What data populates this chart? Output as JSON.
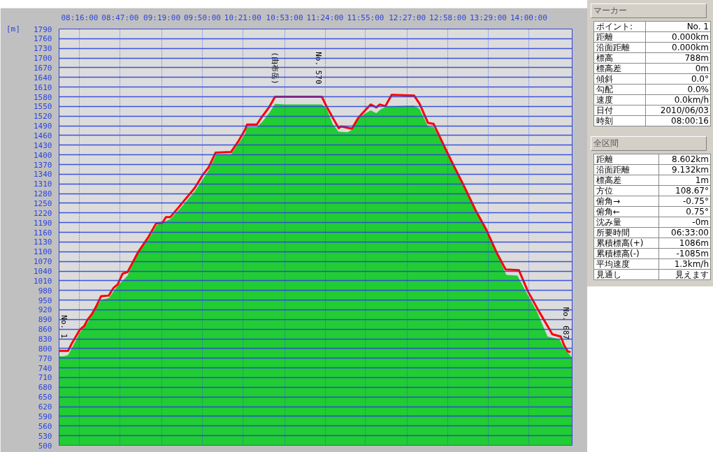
{
  "chart_data": [
    {
      "type": "area",
      "ylabel": "[m]",
      "grid": true,
      "xlim": [
        8.0044,
        14.5544
      ],
      "ylim": [
        500,
        1790
      ],
      "xticks": [
        {
          "value": 8.2667,
          "label": "08:16:00"
        },
        {
          "value": 8.7833,
          "label": "08:47:00"
        },
        {
          "value": 9.3167,
          "label": "09:19:00"
        },
        {
          "value": 9.8333,
          "label": "09:50:00"
        },
        {
          "value": 10.35,
          "label": "10:21:00"
        },
        {
          "value": 10.8833,
          "label": "10:53:00"
        },
        {
          "value": 11.4,
          "label": "11:24:00"
        },
        {
          "value": 11.9167,
          "label": "11:55:00"
        },
        {
          "value": 12.45,
          "label": "12:27:00"
        },
        {
          "value": 12.9667,
          "label": "12:58:00"
        },
        {
          "value": 13.4833,
          "label": "13:29:00"
        },
        {
          "value": 14.0,
          "label": "14:00:00"
        }
      ],
      "yticks": [
        500,
        530,
        560,
        590,
        620,
        650,
        680,
        710,
        740,
        770,
        800,
        830,
        860,
        890,
        920,
        950,
        980,
        1010,
        1040,
        1070,
        1100,
        1130,
        1160,
        1190,
        1220,
        1250,
        1280,
        1310,
        1340,
        1370,
        1400,
        1430,
        1460,
        1490,
        1520,
        1550,
        1580,
        1610,
        1640,
        1670,
        1700,
        1730,
        1760,
        1790
      ],
      "series": [
        {
          "type": "area",
          "color": "#22cc33",
          "x": [
            8.005,
            8.067,
            8.12,
            8.272,
            8.37,
            8.54,
            8.638,
            8.754,
            8.816,
            8.879,
            9.003,
            9.146,
            9.253,
            9.423,
            9.557,
            9.735,
            9.913,
            10.012,
            10.199,
            10.288,
            10.377,
            10.404,
            10.529,
            10.601,
            10.69,
            10.761,
            10.886,
            11.359,
            11.421,
            11.501,
            11.573,
            11.689,
            11.742,
            11.822,
            11.903,
            11.983,
            12.054,
            12.117,
            12.188,
            12.25,
            12.536,
            12.607,
            12.714,
            12.786,
            12.902,
            13.027,
            13.178,
            13.321,
            13.473,
            13.589,
            13.714,
            13.856,
            13.972,
            14.106,
            14.24,
            14.391,
            14.445,
            14.552
          ],
          "values": [
            776,
            776,
            780,
            850,
            881,
            951,
            956,
            995,
            1010,
            1026,
            1093,
            1139,
            1183,
            1201,
            1236,
            1286,
            1352,
            1402,
            1402,
            1433,
            1464,
            1486,
            1486,
            1503,
            1531,
            1558,
            1556,
            1556,
            1542,
            1494,
            1472,
            1470,
            1477,
            1512,
            1527,
            1538,
            1529,
            1542,
            1549,
            1551,
            1553,
            1542,
            1488,
            1486,
            1433,
            1372,
            1297,
            1229,
            1161,
            1096,
            1028,
            1026,
            973,
            914,
            837,
            829,
            804,
            772
          ]
        },
        {
          "type": "line",
          "color": "#ff0000",
          "x": [
            8.005,
            8.12,
            8.165,
            8.272,
            8.326,
            8.37,
            8.424,
            8.486,
            8.54,
            8.638,
            8.7,
            8.754,
            8.816,
            8.879,
            9.012,
            9.146,
            9.244,
            9.325,
            9.369,
            9.423,
            9.557,
            9.735,
            9.842,
            9.913,
            10.003,
            10.199,
            10.288,
            10.377,
            10.404,
            10.529,
            10.583,
            10.69,
            10.761,
            11.314,
            11.359,
            11.421,
            11.51,
            11.573,
            11.608,
            11.742,
            11.822,
            11.911,
            11.983,
            12.054,
            12.099,
            12.17,
            12.25,
            12.536,
            12.607,
            12.714,
            12.786,
            12.902,
            13.027,
            13.169,
            13.321,
            13.455,
            13.589,
            13.705,
            13.874,
            13.99,
            14.124,
            14.302,
            14.409,
            14.454,
            14.499,
            14.534
          ],
          "values": [
            793,
            793,
            815,
            859,
            870,
            890,
            907,
            934,
            962,
            964,
            988,
            999,
            1032,
            1037,
            1098,
            1146,
            1188,
            1190,
            1207,
            1207,
            1245,
            1297,
            1339,
            1361,
            1407,
            1409,
            1440,
            1477,
            1494,
            1494,
            1514,
            1549,
            1580,
            1580,
            1580,
            1549,
            1510,
            1483,
            1488,
            1481,
            1514,
            1538,
            1556,
            1547,
            1556,
            1551,
            1586,
            1584,
            1558,
            1499,
            1496,
            1437,
            1374,
            1306,
            1229,
            1170,
            1098,
            1045,
            1043,
            977,
            918,
            844,
            837,
            809,
            791,
            789
          ]
        }
      ],
      "annotations": [
        {
          "text": "No. 1",
          "x": 8.005,
          "y": 793
        },
        {
          "text": "(由布岳)",
          "x": 10.761,
          "y": 1580
        },
        {
          "text": "No. 570",
          "x": 11.314,
          "y": 1580
        },
        {
          "text": "No. 687",
          "x": 14.534,
          "y": 789
        }
      ]
    },
    {
      "type": "other",
      "title": "マーカー",
      "annotations": [
        "ポイント:",
        "No. 1",
        "距離",
        "0.000km",
        "沿面距離",
        "0.000km",
        "標高",
        "788m",
        "標高差",
        "0m",
        "傾斜",
        "0.0°",
        "勾配",
        "0.0%",
        "速度",
        "0.0km/h",
        "日付",
        "2010/06/03",
        "時刻",
        "08:00:16"
      ]
    },
    {
      "type": "other",
      "title": "全区間",
      "annotations": [
        "距離",
        "8.602km",
        "沿面距離",
        "9.132km",
        "標高差",
        "1m",
        "方位",
        "108.67°",
        "俯角→",
        "-0.75°",
        "俯角←",
        "0.75°",
        "沈み量",
        "-0m",
        "所要時間",
        "06:33:00",
        "累積標高(+)",
        "1086m",
        "累積標高(-)",
        "-1085m",
        "平均速度",
        "1.3km/h",
        "見通し",
        "見えます"
      ]
    }
  ]
}
